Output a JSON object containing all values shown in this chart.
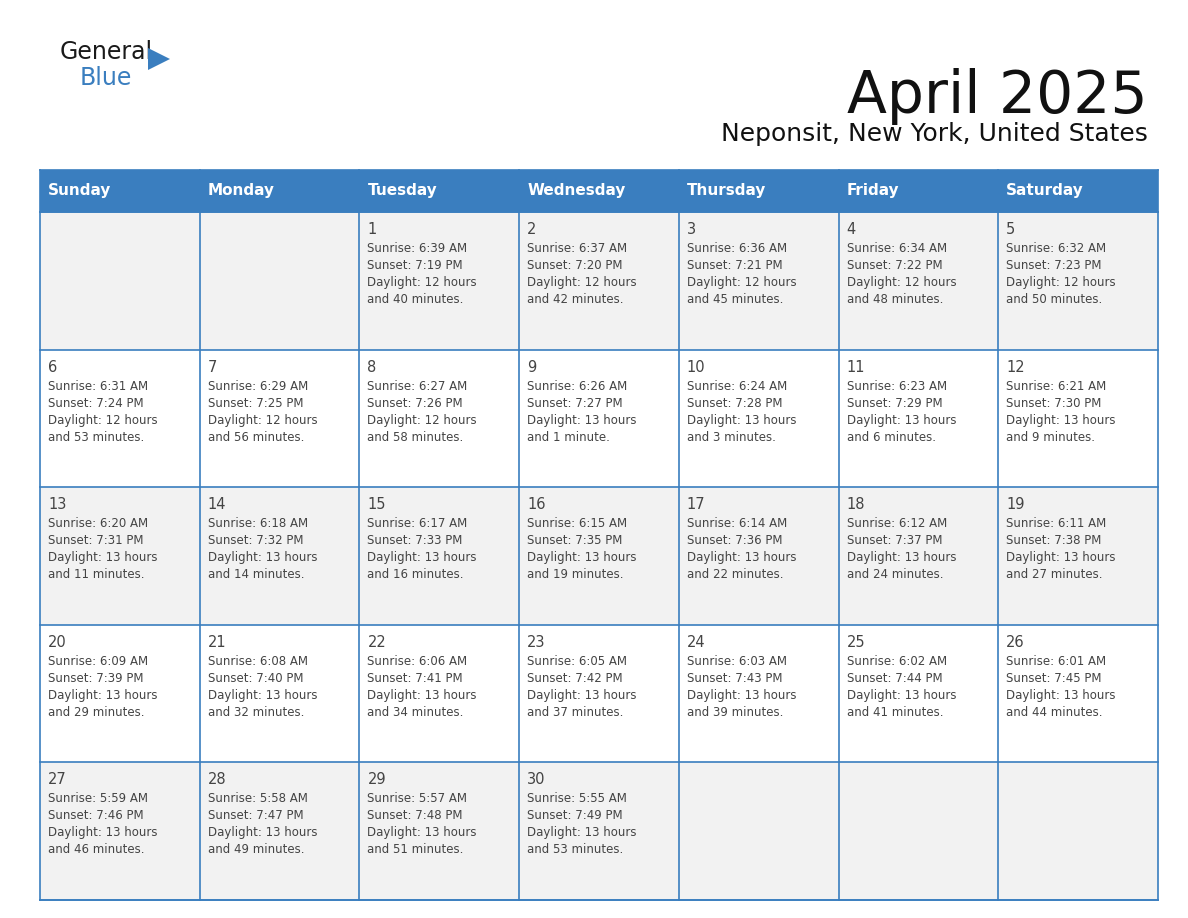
{
  "title": "April 2025",
  "subtitle": "Neponsit, New York, United States",
  "header_color": "#3A7EBF",
  "header_text_color": "#FFFFFF",
  "row_bg_even": "#F2F2F2",
  "row_bg_odd": "#FFFFFF",
  "border_color": "#3A7EBF",
  "text_color": "#444444",
  "days_of_week": [
    "Sunday",
    "Monday",
    "Tuesday",
    "Wednesday",
    "Thursday",
    "Friday",
    "Saturday"
  ],
  "weeks": [
    [
      {
        "day": "",
        "sunrise": "",
        "sunset": "",
        "daylight": ""
      },
      {
        "day": "",
        "sunrise": "",
        "sunset": "",
        "daylight": ""
      },
      {
        "day": "1",
        "sunrise": "6:39 AM",
        "sunset": "7:19 PM",
        "daylight1": "12 hours",
        "daylight2": "and 40 minutes."
      },
      {
        "day": "2",
        "sunrise": "6:37 AM",
        "sunset": "7:20 PM",
        "daylight1": "12 hours",
        "daylight2": "and 42 minutes."
      },
      {
        "day": "3",
        "sunrise": "6:36 AM",
        "sunset": "7:21 PM",
        "daylight1": "12 hours",
        "daylight2": "and 45 minutes."
      },
      {
        "day": "4",
        "sunrise": "6:34 AM",
        "sunset": "7:22 PM",
        "daylight1": "12 hours",
        "daylight2": "and 48 minutes."
      },
      {
        "day": "5",
        "sunrise": "6:32 AM",
        "sunset": "7:23 PM",
        "daylight1": "12 hours",
        "daylight2": "and 50 minutes."
      }
    ],
    [
      {
        "day": "6",
        "sunrise": "6:31 AM",
        "sunset": "7:24 PM",
        "daylight1": "12 hours",
        "daylight2": "and 53 minutes."
      },
      {
        "day": "7",
        "sunrise": "6:29 AM",
        "sunset": "7:25 PM",
        "daylight1": "12 hours",
        "daylight2": "and 56 minutes."
      },
      {
        "day": "8",
        "sunrise": "6:27 AM",
        "sunset": "7:26 PM",
        "daylight1": "12 hours",
        "daylight2": "and 58 minutes."
      },
      {
        "day": "9",
        "sunrise": "6:26 AM",
        "sunset": "7:27 PM",
        "daylight1": "13 hours",
        "daylight2": "and 1 minute."
      },
      {
        "day": "10",
        "sunrise": "6:24 AM",
        "sunset": "7:28 PM",
        "daylight1": "13 hours",
        "daylight2": "and 3 minutes."
      },
      {
        "day": "11",
        "sunrise": "6:23 AM",
        "sunset": "7:29 PM",
        "daylight1": "13 hours",
        "daylight2": "and 6 minutes."
      },
      {
        "day": "12",
        "sunrise": "6:21 AM",
        "sunset": "7:30 PM",
        "daylight1": "13 hours",
        "daylight2": "and 9 minutes."
      }
    ],
    [
      {
        "day": "13",
        "sunrise": "6:20 AM",
        "sunset": "7:31 PM",
        "daylight1": "13 hours",
        "daylight2": "and 11 minutes."
      },
      {
        "day": "14",
        "sunrise": "6:18 AM",
        "sunset": "7:32 PM",
        "daylight1": "13 hours",
        "daylight2": "and 14 minutes."
      },
      {
        "day": "15",
        "sunrise": "6:17 AM",
        "sunset": "7:33 PM",
        "daylight1": "13 hours",
        "daylight2": "and 16 minutes."
      },
      {
        "day": "16",
        "sunrise": "6:15 AM",
        "sunset": "7:35 PM",
        "daylight1": "13 hours",
        "daylight2": "and 19 minutes."
      },
      {
        "day": "17",
        "sunrise": "6:14 AM",
        "sunset": "7:36 PM",
        "daylight1": "13 hours",
        "daylight2": "and 22 minutes."
      },
      {
        "day": "18",
        "sunrise": "6:12 AM",
        "sunset": "7:37 PM",
        "daylight1": "13 hours",
        "daylight2": "and 24 minutes."
      },
      {
        "day": "19",
        "sunrise": "6:11 AM",
        "sunset": "7:38 PM",
        "daylight1": "13 hours",
        "daylight2": "and 27 minutes."
      }
    ],
    [
      {
        "day": "20",
        "sunrise": "6:09 AM",
        "sunset": "7:39 PM",
        "daylight1": "13 hours",
        "daylight2": "and 29 minutes."
      },
      {
        "day": "21",
        "sunrise": "6:08 AM",
        "sunset": "7:40 PM",
        "daylight1": "13 hours",
        "daylight2": "and 32 minutes."
      },
      {
        "day": "22",
        "sunrise": "6:06 AM",
        "sunset": "7:41 PM",
        "daylight1": "13 hours",
        "daylight2": "and 34 minutes."
      },
      {
        "day": "23",
        "sunrise": "6:05 AM",
        "sunset": "7:42 PM",
        "daylight1": "13 hours",
        "daylight2": "and 37 minutes."
      },
      {
        "day": "24",
        "sunrise": "6:03 AM",
        "sunset": "7:43 PM",
        "daylight1": "13 hours",
        "daylight2": "and 39 minutes."
      },
      {
        "day": "25",
        "sunrise": "6:02 AM",
        "sunset": "7:44 PM",
        "daylight1": "13 hours",
        "daylight2": "and 41 minutes."
      },
      {
        "day": "26",
        "sunrise": "6:01 AM",
        "sunset": "7:45 PM",
        "daylight1": "13 hours",
        "daylight2": "and 44 minutes."
      }
    ],
    [
      {
        "day": "27",
        "sunrise": "5:59 AM",
        "sunset": "7:46 PM",
        "daylight1": "13 hours",
        "daylight2": "and 46 minutes."
      },
      {
        "day": "28",
        "sunrise": "5:58 AM",
        "sunset": "7:47 PM",
        "daylight1": "13 hours",
        "daylight2": "and 49 minutes."
      },
      {
        "day": "29",
        "sunrise": "5:57 AM",
        "sunset": "7:48 PM",
        "daylight1": "13 hours",
        "daylight2": "and 51 minutes."
      },
      {
        "day": "30",
        "sunrise": "5:55 AM",
        "sunset": "7:49 PM",
        "daylight1": "13 hours",
        "daylight2": "and 53 minutes."
      },
      {
        "day": "",
        "sunrise": "",
        "sunset": "",
        "daylight1": "",
        "daylight2": ""
      },
      {
        "day": "",
        "sunrise": "",
        "sunset": "",
        "daylight1": "",
        "daylight2": ""
      },
      {
        "day": "",
        "sunrise": "",
        "sunset": "",
        "daylight1": "",
        "daylight2": ""
      }
    ]
  ],
  "logo_text_general": "General",
  "logo_text_blue": "Blue",
  "logo_color_general": "#1a1a1a",
  "logo_color_blue": "#3A7EBF",
  "logo_triangle_color": "#3A7EBF"
}
